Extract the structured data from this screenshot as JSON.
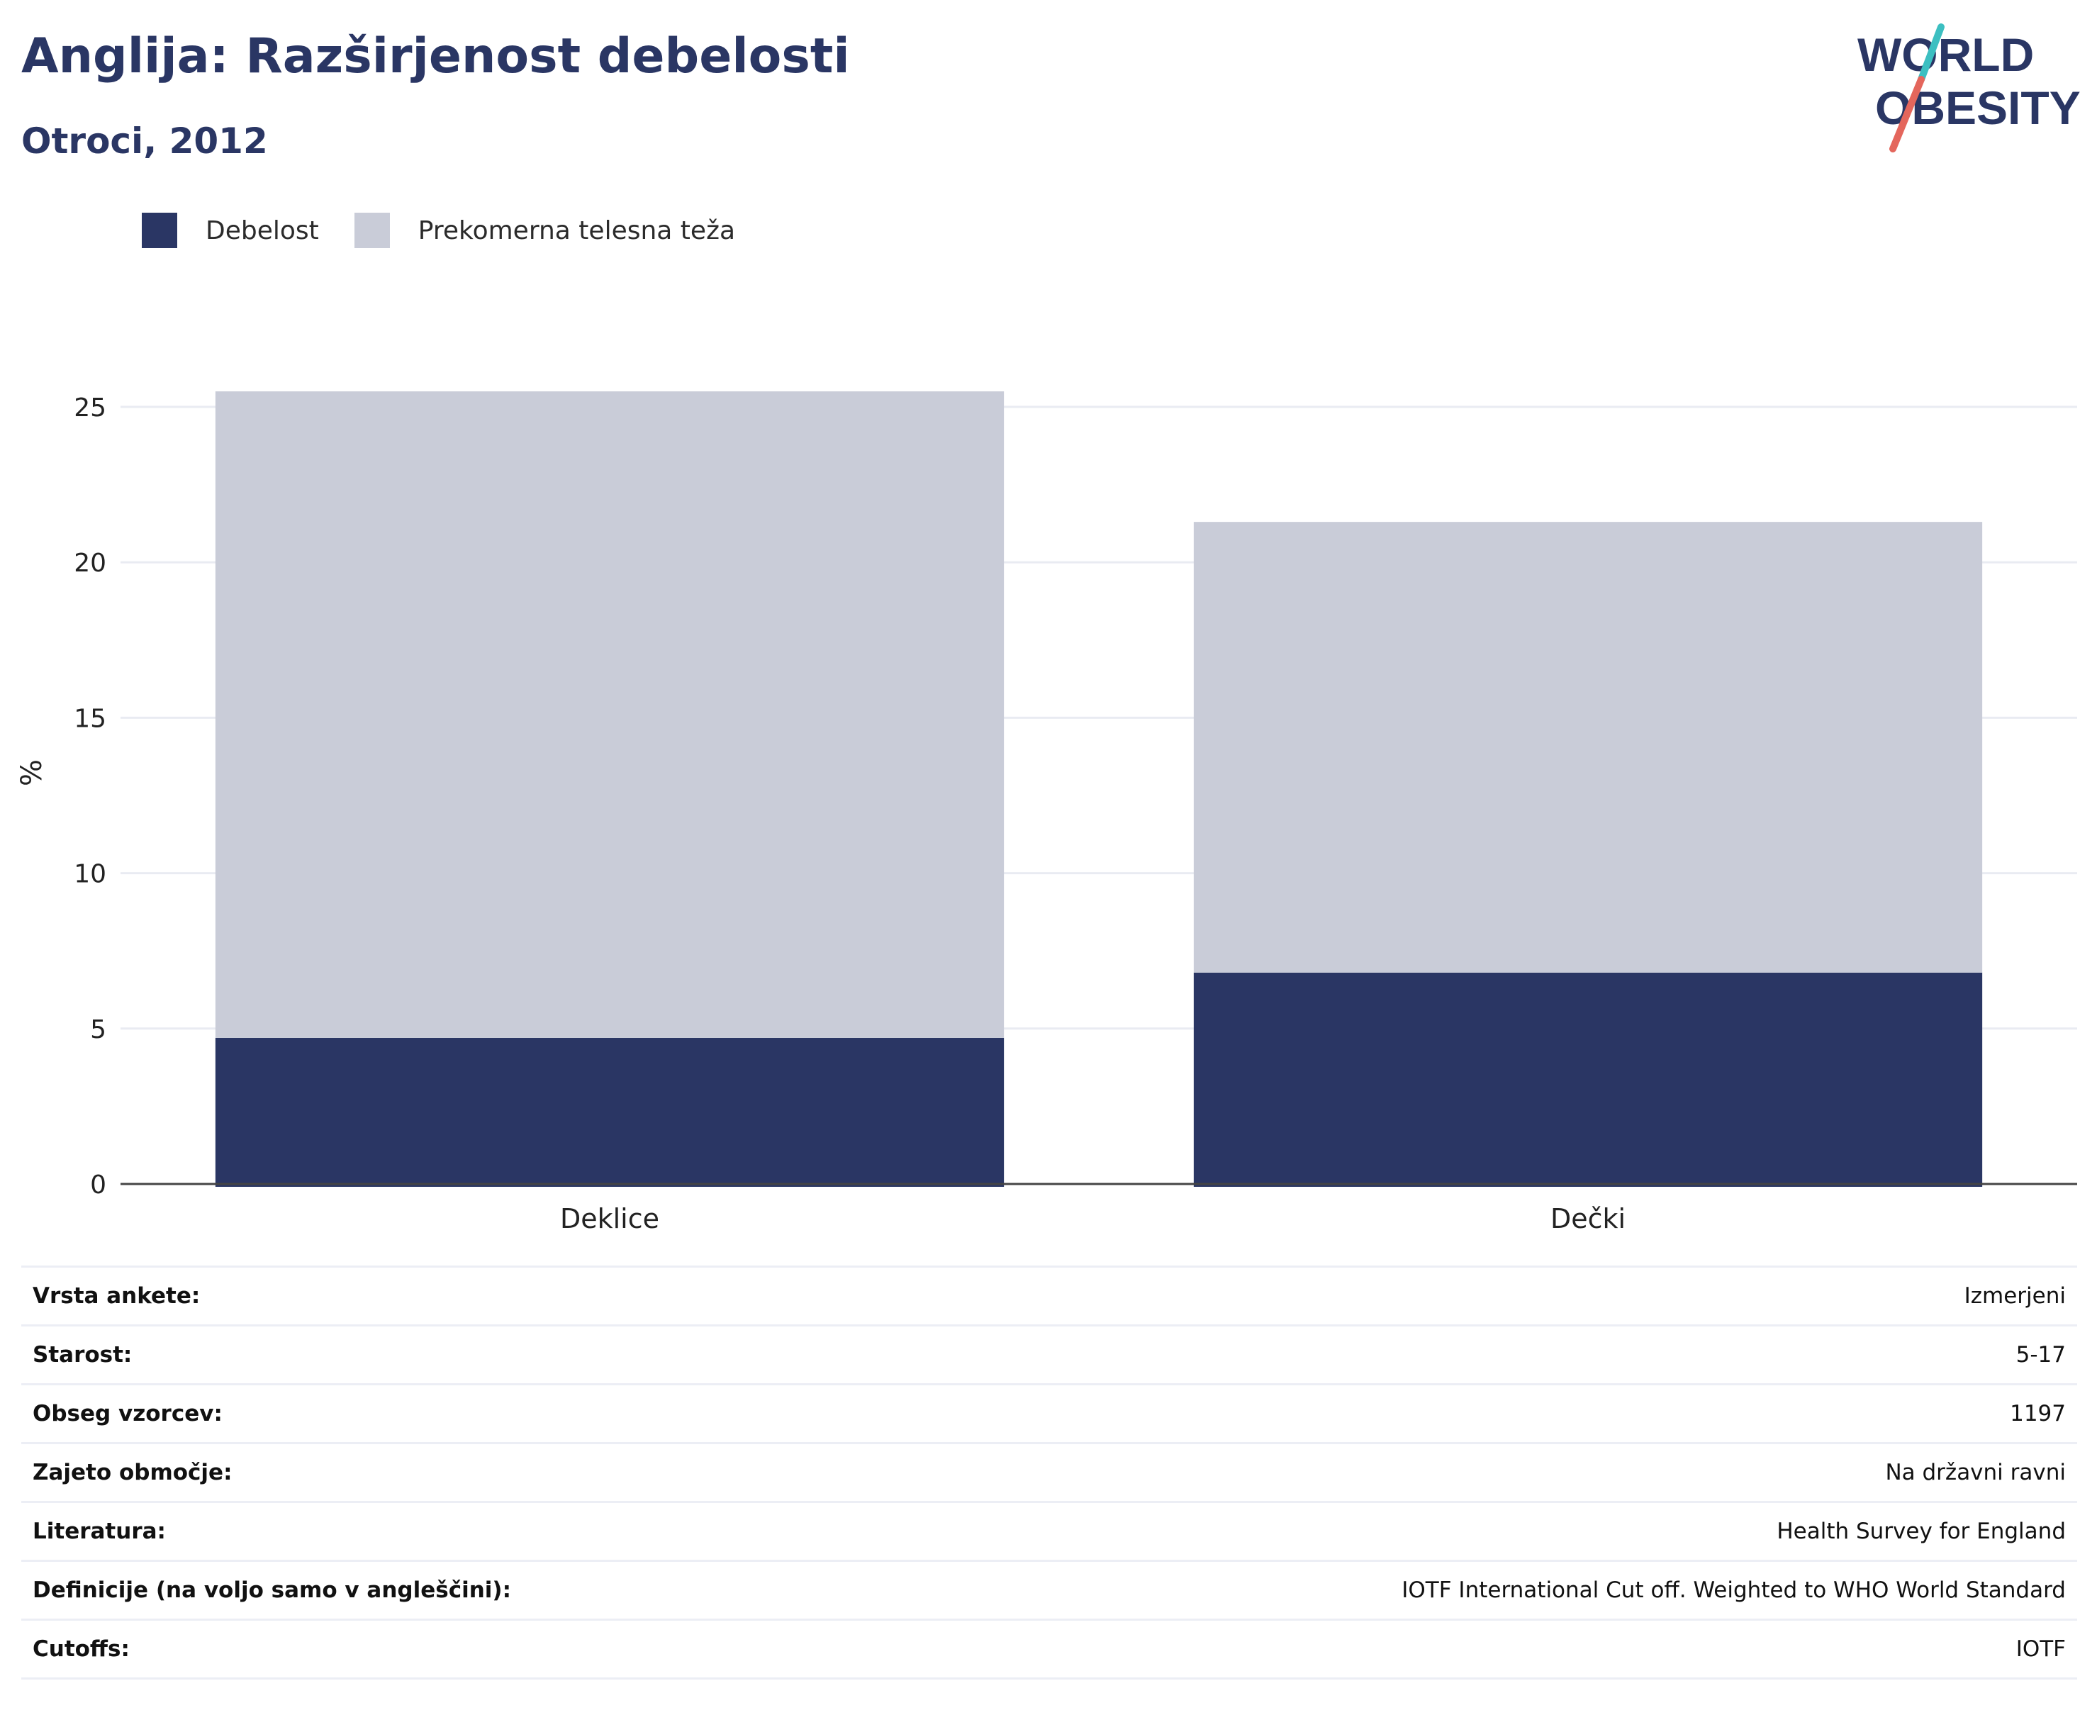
{
  "header": {
    "title": "Anglija: Razširjenost debelosti",
    "subtitle": "Otroci, 2012"
  },
  "logo": {
    "line1": "WORLD",
    "line2": "OBESITY",
    "colors": {
      "text": "#2a3664",
      "slash_top": "#3cbfc1",
      "slash_bottom": "#e4665c"
    }
  },
  "colors": {
    "obesity": "#2a3664",
    "overweight": "#c9ccd8",
    "grid": "#e9ebf2",
    "axis": "#444444"
  },
  "chart_data": {
    "type": "bar",
    "stacked": true,
    "categories": [
      "Deklice",
      "Dečki"
    ],
    "series": [
      {
        "name": "Debelost",
        "values": [
          4.7,
          6.8
        ],
        "color": "#2a3664"
      },
      {
        "name": "Prekomerna telesna teža",
        "values": [
          20.8,
          14.5
        ],
        "color": "#c9ccd8"
      }
    ],
    "ylabel": "%",
    "ylim": [
      0,
      25.5
    ],
    "yticks": [
      0,
      5,
      10,
      15,
      20,
      25
    ],
    "grid": true,
    "legend": "top-left"
  },
  "meta": [
    {
      "key": "Vrsta ankete:",
      "value": "Izmerjeni"
    },
    {
      "key": "Starost:",
      "value": "5-17"
    },
    {
      "key": "Obseg vzorcev:",
      "value": "1197"
    },
    {
      "key": "Zajeto območje:",
      "value": "Na državni ravni"
    },
    {
      "key": "Literatura:",
      "value": "Health Survey for England"
    },
    {
      "key": "Definicije (na voljo samo v angleščini):",
      "value": "IOTF International Cut off. Weighted to WHO World Standard"
    },
    {
      "key": "Cutoffs:",
      "value": "IOTF"
    }
  ]
}
